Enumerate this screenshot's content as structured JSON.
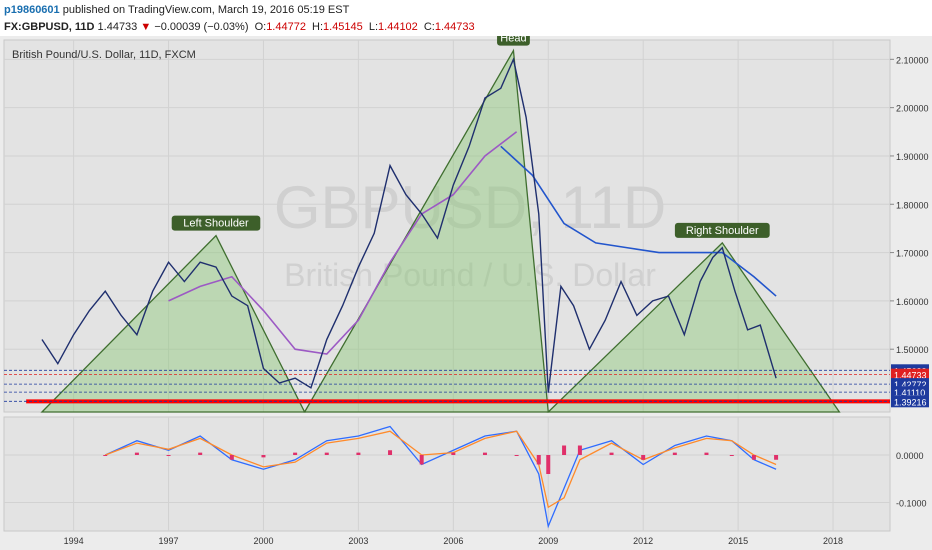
{
  "header": {
    "user": "p19860601",
    "published": "published on TradingView.com, March 19, 2016 05:19 EST",
    "symbol": "FX:GBPUSD, 11D",
    "last": "1.44733",
    "change": "−0.00039 (−0.03%)",
    "ohlc": [
      {
        "label": "O:",
        "value": "1.44772"
      },
      {
        "label": "H:",
        "value": "1.45145"
      },
      {
        "label": "L:",
        "value": "1.44102"
      },
      {
        "label": "C:",
        "value": "1.44733"
      }
    ]
  },
  "chart_data": [
    {
      "type": "line",
      "title": "British Pound/U.S. Dollar, 11D, FXCM",
      "watermark_symbol": "GBPUSD, 11D",
      "watermark_name": "British Pound / U.S. Dollar",
      "x_ticks": [
        "1994",
        "1997",
        "2000",
        "2003",
        "2006",
        "2009",
        "2012",
        "2015",
        "2018"
      ],
      "y_ticks": [
        "1.50000",
        "1.60000",
        "1.70000",
        "1.80000",
        "1.90000",
        "2.00000",
        "2.10000"
      ],
      "ylim": [
        1.37,
        2.14
      ],
      "xlim": [
        1991.8,
        2019.8
      ],
      "price_tags": [
        {
          "value": 1.45633,
          "label": "1.45633",
          "color": "#1e3a9e"
        },
        {
          "value": 1.44733,
          "label": "1.44733",
          "color": "#e02020"
        },
        {
          "value": 1.42772,
          "label": "1.42772",
          "color": "#1e3a9e"
        },
        {
          "value": 1.4111,
          "label": "1.41110",
          "color": "#1e3a9e"
        },
        {
          "value": 1.39216,
          "label": "1.39216",
          "color": "#1e3a9e"
        }
      ],
      "annotations": [
        {
          "text": "Left Shoulder",
          "x": 1998.5,
          "y": 1.735
        },
        {
          "text": "Head",
          "x": 2007.9,
          "y": 2.118
        },
        {
          "text": "Right Shoulder",
          "x": 2014.5,
          "y": 1.72
        }
      ],
      "pattern_triangles": [
        [
          [
            1993.0,
            1.37
          ],
          [
            1998.5,
            1.735
          ],
          [
            2001.3,
            1.37
          ]
        ],
        [
          [
            2001.3,
            1.37
          ],
          [
            2007.9,
            2.118
          ],
          [
            2009.0,
            1.37
          ]
        ],
        [
          [
            2009.0,
            1.37
          ],
          [
            2014.5,
            1.72
          ],
          [
            2018.2,
            1.37
          ]
        ]
      ],
      "neckline": {
        "color": "#ff0000",
        "y": 1.392
      },
      "price_series": {
        "name": "GBPUSD",
        "x": [
          1993.0,
          1993.5,
          1994.0,
          1994.5,
          1995.0,
          1995.5,
          1996.0,
          1996.5,
          1997.0,
          1997.5,
          1998.0,
          1998.5,
          1999.0,
          1999.5,
          2000.0,
          2000.5,
          2001.0,
          2001.5,
          2002.0,
          2002.5,
          2003.0,
          2003.5,
          2004.0,
          2004.5,
          2005.0,
          2005.5,
          2006.0,
          2006.5,
          2007.0,
          2007.5,
          2007.9,
          2008.3,
          2008.7,
          2009.0,
          2009.4,
          2009.8,
          2010.3,
          2010.8,
          2011.3,
          2011.8,
          2012.3,
          2012.8,
          2013.3,
          2013.8,
          2014.2,
          2014.5,
          2014.9,
          2015.3,
          2015.7,
          2016.2
        ],
        "values": [
          1.52,
          1.47,
          1.53,
          1.58,
          1.62,
          1.57,
          1.53,
          1.62,
          1.68,
          1.64,
          1.68,
          1.67,
          1.61,
          1.59,
          1.46,
          1.43,
          1.44,
          1.42,
          1.52,
          1.59,
          1.67,
          1.74,
          1.88,
          1.82,
          1.78,
          1.73,
          1.84,
          1.92,
          2.02,
          2.04,
          2.1,
          1.98,
          1.78,
          1.41,
          1.63,
          1.59,
          1.5,
          1.56,
          1.64,
          1.57,
          1.6,
          1.61,
          1.53,
          1.64,
          1.69,
          1.71,
          1.62,
          1.54,
          1.55,
          1.44
        ]
      },
      "moving_average_series": [
        {
          "color": "#2255cc",
          "x": [
            2007.5,
            2008.5,
            2009.5,
            2010.5,
            2011.5,
            2012.5,
            2013.5,
            2014.5,
            2015.5,
            2016.2
          ],
          "values": [
            1.92,
            1.86,
            1.76,
            1.72,
            1.71,
            1.7,
            1.7,
            1.7,
            1.65,
            1.61
          ]
        },
        {
          "color": "#9c59c4",
          "x": [
            1997.0,
            1998.0,
            1999.0,
            2000.0,
            2001.0,
            2002.0,
            2003.0,
            2004.0,
            2005.0,
            2006.0,
            2007.0,
            2008.0
          ],
          "values": [
            1.6,
            1.63,
            1.65,
            1.58,
            1.5,
            1.49,
            1.56,
            1.68,
            1.78,
            1.82,
            1.9,
            1.95
          ]
        }
      ]
    },
    {
      "type": "line",
      "y_ticks": [
        "0.0000",
        "-0.1000"
      ],
      "ylim": [
        -0.16,
        0.08
      ],
      "series": [
        {
          "color": "#2f6cff",
          "x": [
            1995.0,
            1996.0,
            1997.0,
            1998.0,
            1999.0,
            2000.0,
            2001.0,
            2002.0,
            2003.0,
            2004.0,
            2005.0,
            2006.0,
            2007.0,
            2008.0,
            2008.7,
            2009.0,
            2009.5,
            2010.0,
            2011.0,
            2012.0,
            2013.0,
            2014.0,
            2014.8,
            2015.5,
            2016.2
          ],
          "values": [
            0.0,
            0.03,
            0.01,
            0.04,
            -0.01,
            -0.03,
            -0.01,
            0.03,
            0.04,
            0.06,
            -0.02,
            0.01,
            0.04,
            0.05,
            -0.04,
            -0.15,
            -0.07,
            0.01,
            0.03,
            -0.02,
            0.02,
            0.04,
            0.03,
            -0.01,
            -0.03
          ]
        },
        {
          "color": "#ff8a2a",
          "x": [
            1995.0,
            1996.0,
            1997.0,
            1998.0,
            1999.0,
            2000.0,
            2001.0,
            2002.0,
            2003.0,
            2004.0,
            2005.0,
            2006.0,
            2007.0,
            2008.0,
            2008.7,
            2009.0,
            2009.5,
            2010.0,
            2011.0,
            2012.0,
            2013.0,
            2014.0,
            2014.8,
            2015.5,
            2016.2
          ],
          "values": [
            0.0,
            0.025,
            0.012,
            0.035,
            0.0,
            -0.025,
            -0.015,
            0.025,
            0.035,
            0.05,
            0.0,
            0.005,
            0.035,
            0.05,
            -0.02,
            -0.11,
            -0.09,
            -0.01,
            0.025,
            -0.01,
            0.015,
            0.035,
            0.03,
            0.0,
            -0.02
          ]
        }
      ]
    }
  ]
}
